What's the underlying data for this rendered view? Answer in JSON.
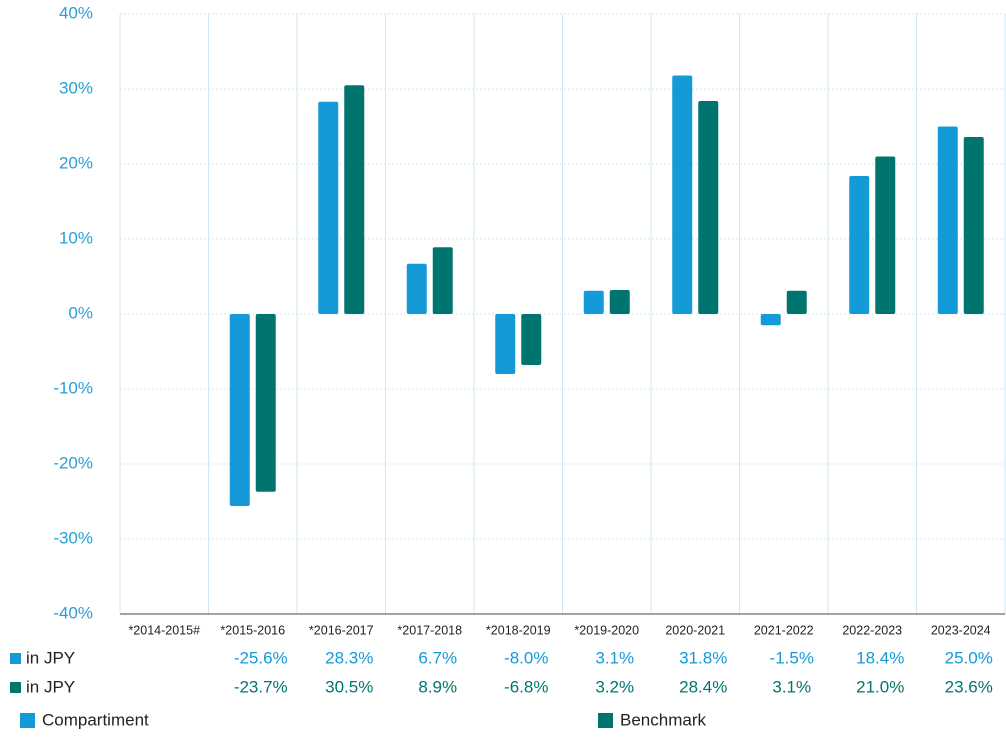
{
  "chart_data": {
    "type": "bar",
    "categories": [
      "*2014-2015#",
      "*2015-2016",
      "*2016-2017",
      "*2017-2018",
      "*2018-2019",
      "*2019-2020",
      "2020-2021",
      "2021-2022",
      "2022-2023",
      "2023-2024"
    ],
    "series": [
      {
        "name": "Compartiment",
        "color": "#149ad6",
        "row_label": "in JPY",
        "values": [
          null,
          -25.6,
          28.3,
          6.7,
          -8.0,
          3.1,
          31.8,
          -1.5,
          18.4,
          25.0
        ],
        "value_labels": [
          null,
          "-25.6%",
          "28.3%",
          "6.7%",
          "-8.0%",
          "3.1%",
          "31.8%",
          "-1.5%",
          "18.4%",
          "25.0%"
        ]
      },
      {
        "name": "Benchmark",
        "color": "#007570",
        "row_label": "in JPY",
        "values": [
          null,
          -23.7,
          30.5,
          8.9,
          -6.8,
          3.2,
          28.4,
          3.1,
          21.0,
          23.6
        ],
        "value_labels": [
          null,
          "-23.7%",
          "30.5%",
          "8.9%",
          "-6.8%",
          "3.2%",
          "28.4%",
          "3.1%",
          "21.0%",
          "23.6%"
        ]
      }
    ],
    "ylim": [
      -40,
      40
    ],
    "yticks": [
      {
        "value": -40,
        "label": "-40%"
      },
      {
        "value": -30,
        "label": "-30%"
      },
      {
        "value": -20,
        "label": "-20%"
      },
      {
        "value": -10,
        "label": "-10%"
      },
      {
        "value": 0,
        "label": "0%"
      },
      {
        "value": 10,
        "label": "10%"
      },
      {
        "value": 20,
        "label": "20%"
      },
      {
        "value": 30,
        "label": "30%"
      },
      {
        "value": 40,
        "label": "40%"
      }
    ],
    "grid": true
  }
}
